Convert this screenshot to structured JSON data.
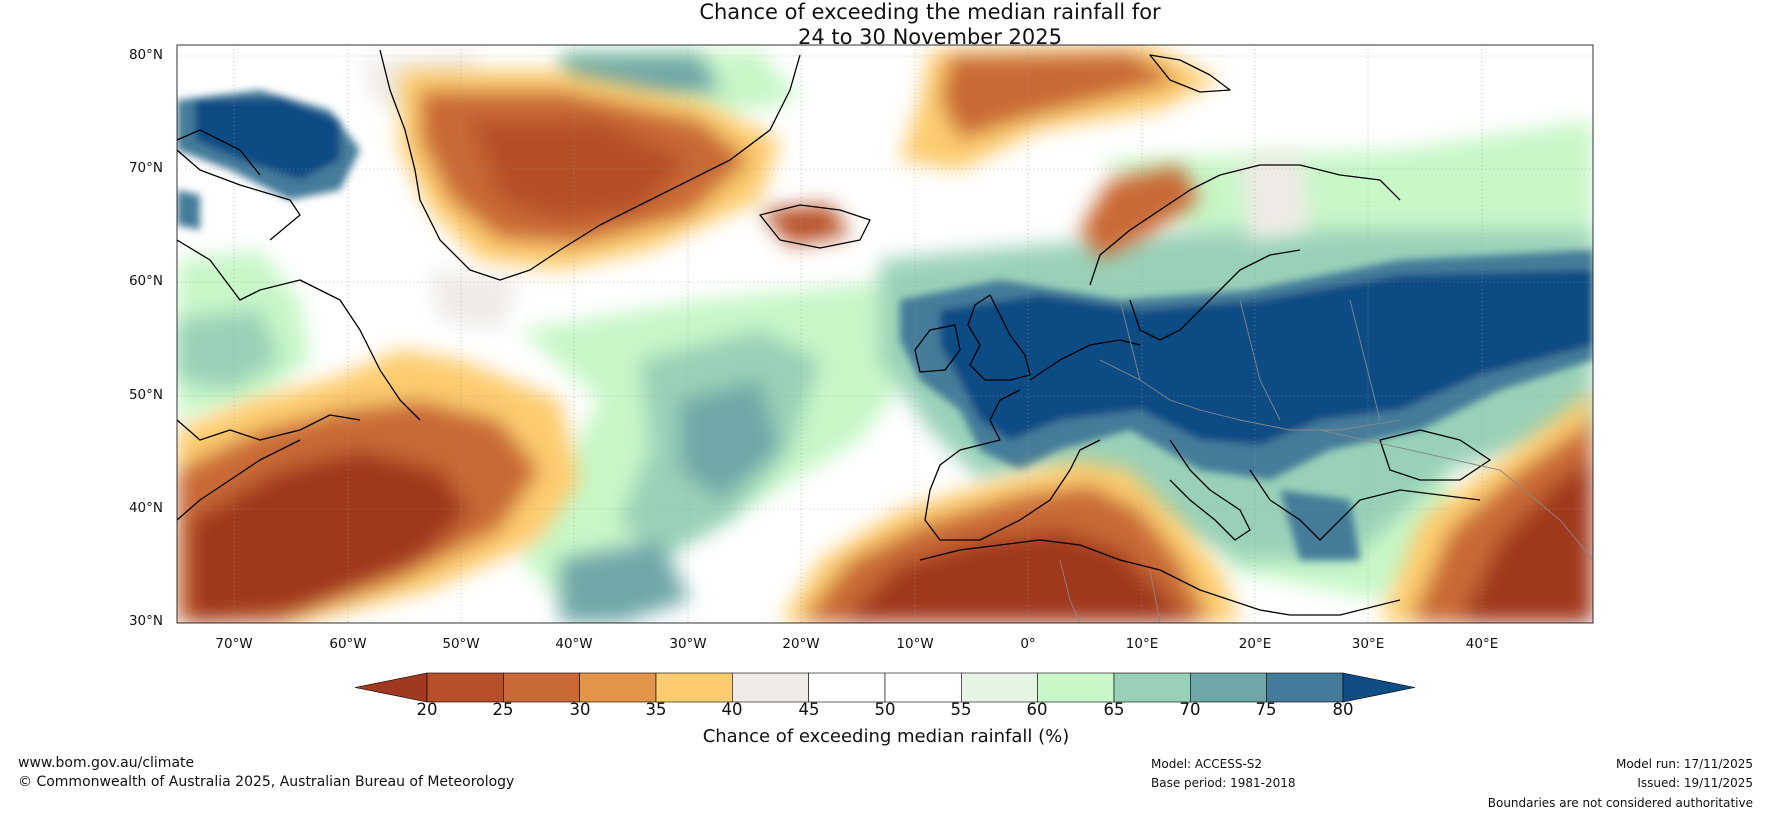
{
  "title": {
    "line1": "Chance of exceeding the median rainfall for",
    "line2": "24 to 30 November 2025"
  },
  "axes": {
    "lat_labels": [
      "80°N",
      "70°N",
      "60°N",
      "50°N",
      "40°N",
      "30°N"
    ],
    "lon_labels": [
      "70°W",
      "60°W",
      "50°W",
      "40°W",
      "30°W",
      "20°W",
      "10°W",
      "0°",
      "10°E",
      "20°E",
      "30°E",
      "40°E"
    ]
  },
  "colorbar": {
    "ticks": [
      "20",
      "25",
      "30",
      "35",
      "40",
      "45",
      "50",
      "55",
      "60",
      "65",
      "70",
      "75",
      "80"
    ],
    "colors": [
      "#a0391f",
      "#b74f28",
      "#c96936",
      "#e2954a",
      "#fdcc6e",
      "#efebe6",
      "#ffffff",
      "#ffffff",
      "#e6f4e4",
      "#c8f7c8",
      "#99d1b8",
      "#6fa7a8",
      "#457b9a",
      "#0f4c84"
    ],
    "label": "Chance of exceeding median rainfall (%)"
  },
  "footer": {
    "url": "www.bom.gov.au/climate",
    "copyright": "© Commonwealth of Australia 2025, Australian Bureau of Meteorology",
    "model": "Model: ACCESS-S2",
    "base_period": "Base period: 1981-2018",
    "model_run": "Model run: 17/11/2025",
    "issued": "Issued: 19/11/2025",
    "disclaimer": "Boundaries are not considered authoritative"
  }
}
